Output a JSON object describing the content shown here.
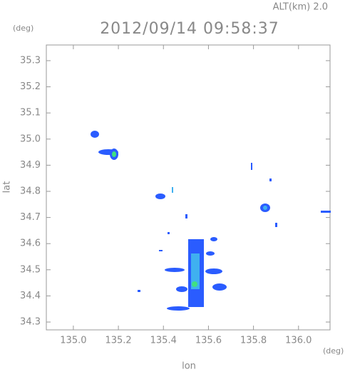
{
  "chart_data": {
    "type": "map",
    "title": "2012/09/14 09:58:37",
    "altitude_label": "ALT(km) 2.0",
    "xlabel": "lon",
    "ylabel": "lat",
    "x_unit": "(deg)",
    "y_unit": "(deg)",
    "xlim": [
      134.88,
      136.14
    ],
    "ylim": [
      34.27,
      35.36
    ],
    "xticks": [
      {
        "value": 135,
        "label": "135.0"
      },
      135.2,
      135.4,
      135.6,
      135.8,
      {
        "value": 136,
        "label": "136.0"
      }
    ],
    "yticks": [
      34.3,
      34.4,
      34.5,
      34.6,
      34.7,
      34.8,
      34.9,
      {
        "value": 35,
        "label": "35.0"
      },
      35.1,
      35.2,
      35.3
    ],
    "grid": false
  }
}
